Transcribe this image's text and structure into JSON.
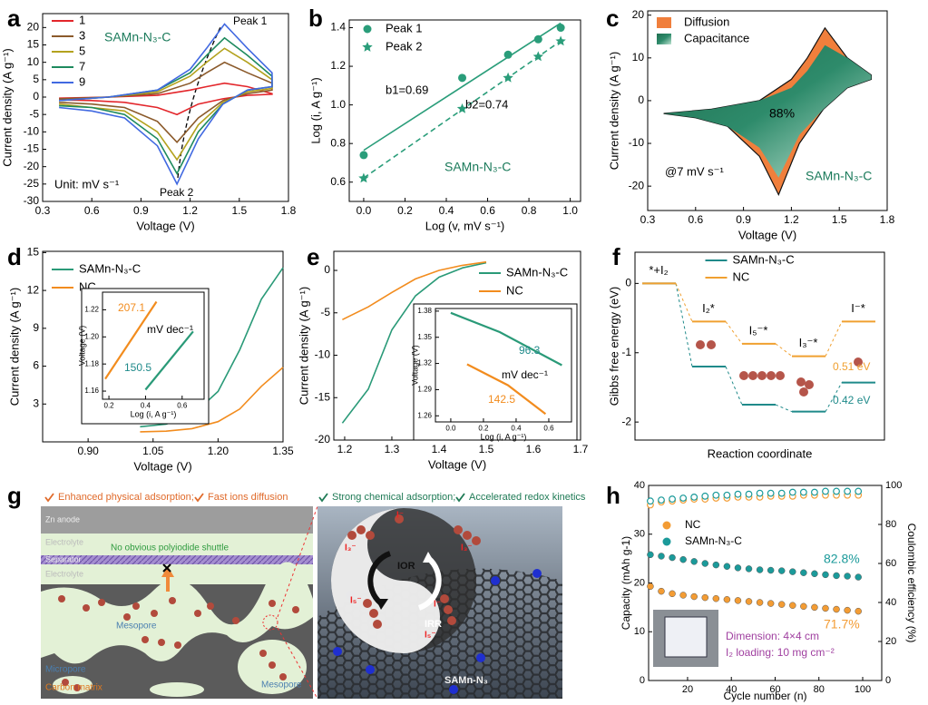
{
  "chart_data": [
    {
      "type": "line",
      "label": "a",
      "xlabel": "Voltage (V)",
      "ylabel": "Current density (A g⁻¹)",
      "xlim": [
        0.3,
        1.8
      ],
      "xticks": [
        0.3,
        0.6,
        0.9,
        1.2,
        1.5,
        1.8
      ],
      "ylim": [
        -30,
        24
      ],
      "yticks": [
        -30,
        -25,
        -20,
        -15,
        -10,
        -5,
        0,
        5,
        10,
        15,
        20
      ],
      "x": [
        0.4,
        0.7,
        1.0,
        1.2,
        1.3,
        1.41,
        1.55,
        1.7,
        1.7,
        1.55,
        1.4,
        1.25,
        1.12,
        1.0,
        0.8,
        0.6,
        0.4
      ],
      "series": [
        {
          "name": "1",
          "color": "#e3262b",
          "values": [
            -0.3,
            0,
            0.5,
            2,
            3,
            4,
            3,
            1,
            0.8,
            0.5,
            -0.5,
            -2,
            -5,
            -3,
            -1.5,
            -1,
            -0.8
          ]
        },
        {
          "name": "3",
          "color": "#8b5a2b",
          "values": [
            -0.5,
            0,
            1,
            4,
            7,
            10,
            7,
            4,
            2,
            1,
            -1,
            -6,
            -13,
            -7,
            -3,
            -2,
            -1.5
          ]
        },
        {
          "name": "5",
          "color": "#b3a21e",
          "values": [
            -1,
            0,
            1.5,
            6,
            10,
            14,
            10,
            5,
            2.5,
            1.5,
            -1.5,
            -8,
            -18,
            -10,
            -4,
            -3,
            -2
          ]
        },
        {
          "name": "7",
          "color": "#1e8a5e",
          "values": [
            -1,
            0,
            2,
            7,
            12,
            17,
            12,
            6,
            3,
            2,
            -2,
            -10,
            -22,
            -12,
            -5,
            -3,
            -2.5
          ]
        },
        {
          "name": "9",
          "color": "#4169e1",
          "values": [
            -1,
            0,
            2,
            8,
            14,
            21,
            14,
            7,
            3,
            2,
            -2,
            -12,
            -25,
            -14,
            -6,
            -4,
            -3
          ]
        }
      ],
      "legend": "upper left",
      "annotations": [
        "SAMn-N₃-C",
        "Unit: mV s⁻¹",
        "Peak 1",
        "Peak 2"
      ]
    },
    {
      "type": "scatter",
      "label": "b",
      "xlabel": "Log (v, mV s⁻¹)",
      "ylabel": "Log (i, A g⁻¹)",
      "xlim": [
        -0.07,
        1.05
      ],
      "xticks": [
        {
          "value": 0,
          "label": "0.0"
        },
        0.2,
        0.4,
        0.6,
        0.8,
        {
          "value": 1,
          "label": "1.0"
        }
      ],
      "ylim": [
        0.5,
        1.44
      ],
      "yticks": [
        0.6,
        0.8,
        {
          "value": 1,
          "label": "1.0"
        },
        1.2,
        1.4
      ],
      "x": [
        0,
        0.477,
        0.699,
        0.845,
        0.954
      ],
      "series": [
        {
          "name": "Peak 1",
          "color": "#2a9d7a",
          "marker": "circle",
          "line_style": "solid",
          "values": [
            0.74,
            1.14,
            1.26,
            1.34,
            1.4
          ]
        },
        {
          "name": "Peak 2",
          "color": "#2a9d7a",
          "marker": "star",
          "line_style": "dashed",
          "values": [
            0.62,
            0.98,
            1.14,
            1.25,
            1.33
          ]
        }
      ],
      "fit_line": true,
      "legend": "upper left",
      "annotations": [
        "b1=0.69",
        "b2=0.74",
        "SAMn-N₃-C"
      ]
    },
    {
      "type": "area",
      "label": "c",
      "xlabel": "Voltage (V)",
      "ylabel": "Current density (A g⁻¹)",
      "xlim": [
        0.3,
        1.8
      ],
      "xticks": [
        0.3,
        0.6,
        0.9,
        1.2,
        1.5,
        1.8
      ],
      "ylim": [
        -25.7,
        21
      ],
      "yticks": [
        -20,
        -10,
        0,
        10,
        20
      ],
      "x": [
        0.4,
        0.7,
        1.0,
        1.2,
        1.3,
        1.41,
        1.55,
        1.7,
        1.7,
        1.55,
        1.4,
        1.25,
        1.12,
        1.0,
        0.8,
        0.6,
        0.4
      ],
      "series": [
        {
          "name": "Diffusion",
          "color": "#f07f3c",
          "values": [
            -3,
            -2,
            0,
            5,
            10,
            17,
            10,
            6,
            5,
            3,
            -2,
            -10,
            -22,
            -13,
            -6,
            -4,
            -3
          ]
        },
        {
          "name": "Capacitance",
          "color": "#2e8b6b",
          "values": [
            -3,
            -2,
            0,
            3,
            7,
            13,
            10,
            6,
            5,
            3,
            -2,
            -8,
            -18,
            -11,
            -6,
            -4,
            -3
          ]
        }
      ],
      "legend": "upper left",
      "annotations": [
        "88%",
        "@7 mV s⁻¹",
        "SAMn-N₃-C"
      ]
    },
    {
      "type": "line",
      "label": "d",
      "xlabel": "Voltage (V)",
      "ylabel": "Current density (A g⁻¹)",
      "xlim": [
        0.795,
        1.35
      ],
      "xticks": [
        {
          "value": 0.9,
          "label": "0.90"
        },
        1.05,
        {
          "value": 1.2,
          "label": "1.20"
        },
        1.35
      ],
      "ylim": [
        0,
        15.1
      ],
      "yticks": [
        3,
        6,
        9,
        12,
        15
      ],
      "x": [
        1.02,
        1.08,
        1.14,
        1.2,
        1.25,
        1.3,
        1.35
      ],
      "series": [
        {
          "name": "SAMn-N₃-C",
          "color": "#2a9a78",
          "values": [
            1.2,
            1.4,
            2.1,
            4.0,
            7.3,
            11.3,
            13.8
          ]
        },
        {
          "name": "NC",
          "color": "#f28c1e",
          "values": [
            0.8,
            0.85,
            1.05,
            1.6,
            2.6,
            4.4,
            5.9
          ]
        }
      ],
      "legend": "upper left",
      "inset": {
        "type": "line",
        "xlabel": "Log (i, A g⁻¹)",
        "ylabel": "Voltage (V)",
        "xlim": [
          0.165,
          0.72
        ],
        "xticks": [
          0.2,
          0.4,
          0.6
        ],
        "ylim": [
          1.154,
          1.233
        ],
        "yticks": [
          1.16,
          1.18,
          {
            "value": 1.2,
            "label": "1.20"
          },
          1.22
        ],
        "series": [
          {
            "color": "#f28c1e",
            "x": [
              0.18,
              0.46
            ],
            "values": [
              1.169,
              1.226
            ]
          },
          {
            "color": "#2a9a78",
            "x": [
              0.4,
              0.66
            ],
            "values": [
              1.161,
              1.204
            ]
          }
        ],
        "annotations": [
          "207.1",
          "150.5",
          "mV dec⁻¹"
        ]
      }
    },
    {
      "type": "line",
      "label": "e",
      "xlabel": "Voltage (V)",
      "ylabel": "Current density (A g⁻¹)",
      "xlim": [
        1.177,
        1.7
      ],
      "xticks": [
        1.2,
        1.3,
        1.4,
        1.5,
        1.6,
        1.7
      ],
      "ylim": [
        -20,
        2.25
      ],
      "yticks": [
        -20,
        -15,
        -10,
        -5,
        0
      ],
      "x": [
        1.195,
        1.25,
        1.3,
        1.35,
        1.4,
        1.45,
        1.5
      ],
      "series": [
        {
          "name": "SAMn-N₃-C",
          "color": "#2a9a78",
          "values": [
            -18,
            -14,
            -7,
            -3,
            -0.8,
            0.3,
            0.9
          ]
        },
        {
          "name": "NC",
          "color": "#f28c1e",
          "values": [
            -5.8,
            -4.3,
            -2.6,
            -1,
            0,
            0.6,
            1
          ]
        }
      ],
      "legend": "upper right",
      "inset": {
        "type": "line",
        "xlabel": "Log (i, A g⁻¹)",
        "ylabel": "Voltage (V)",
        "xlim": [
          -0.094,
          0.739
        ],
        "xticks": [
          {
            "value": 0,
            "label": "0.0"
          },
          0.2,
          0.4,
          0.6
        ],
        "ylim": [
          1.253,
          1.383
        ],
        "yticks": [
          1.26,
          1.29,
          1.32,
          1.35,
          1.38
        ],
        "series": [
          {
            "color": "#2a9a78",
            "x": [
              0,
              0.3,
              0.68
            ],
            "values": [
              1.378,
              1.356,
              1.318
            ]
          },
          {
            "color": "#f28c1e",
            "x": [
              0.1,
              0.35,
              0.58
            ],
            "values": [
              1.319,
              1.295,
              1.262
            ]
          }
        ],
        "annotations": [
          "96.3",
          "142.5",
          "mV dec⁻¹"
        ]
      }
    },
    {
      "type": "step",
      "label": "f",
      "xlabel": "Reaction coordinate",
      "ylabel": "Gibbs free energy (eV)",
      "ylim": [
        -2.26,
        0.45
      ],
      "yticks": [
        -2,
        -1,
        0
      ],
      "categories": [
        "*+I₂",
        "I₂*",
        "I₅⁻*",
        "I₃⁻*",
        "I⁻*"
      ],
      "series": [
        {
          "name": "SAMn-N₃-C",
          "color": "#1f8a8a",
          "values": [
            0,
            -1.2,
            -1.75,
            -1.85,
            -1.43
          ]
        },
        {
          "name": "NC",
          "color": "#f0a030",
          "values": [
            0,
            -0.55,
            -0.87,
            -1.05,
            -0.55
          ]
        }
      ],
      "legend": "upper center",
      "annotations": [
        "0.51 eV",
        "0.42 eV"
      ]
    },
    {
      "type": "scatter",
      "label": "h",
      "xlabel": "Cycle number (n)",
      "ylabel": "Capacity (mAh g-1)",
      "y2label": "Coulombic efficiency (%)",
      "xlim": [
        2.2,
        108.7
      ],
      "xticks": [
        20,
        40,
        60,
        80,
        100
      ],
      "ylim": [
        0,
        40
      ],
      "yticks": [
        0,
        10,
        20,
        30,
        40
      ],
      "y2lim": [
        0,
        100
      ],
      "y2ticks": [
        0,
        20,
        40,
        60,
        80,
        100
      ],
      "x": [
        3,
        8,
        13,
        18,
        23,
        28,
        33,
        38,
        43,
        48,
        53,
        58,
        63,
        68,
        73,
        78,
        83,
        88,
        93,
        98
      ],
      "series": [
        {
          "name": "NC",
          "color": "#f39c34",
          "values": [
            19.3,
            18.3,
            17.8,
            17.5,
            17.2,
            17.0,
            16.8,
            16.6,
            16.4,
            16.2,
            16.0,
            15.8,
            15.6,
            15.4,
            15.2,
            15.0,
            14.8,
            14.6,
            14.4,
            14.2
          ],
          "y2_values": [
            90,
            91.5,
            92,
            92.5,
            93,
            93,
            93.5,
            93.5,
            94,
            94,
            94,
            94.5,
            94.5,
            94.5,
            95,
            95,
            95,
            95,
            95,
            95
          ]
        },
        {
          "name": "SAMn-N₃-C",
          "color": "#1b9a9a",
          "values": [
            25.8,
            25.5,
            25.2,
            24.8,
            24.4,
            24.0,
            23.7,
            23.4,
            23.1,
            22.9,
            22.7,
            22.6,
            22.5,
            22.3,
            22.1,
            21.9,
            21.7,
            21.5,
            21.4,
            21.2
          ],
          "y2_values": [
            92,
            92.5,
            93,
            93.5,
            94,
            94.5,
            95,
            95,
            95.5,
            95.5,
            96,
            96,
            96,
            96.5,
            96.5,
            96.5,
            97,
            97,
            97,
            97
          ]
        }
      ],
      "legend": "upper left",
      "annotations": [
        "82.8%",
        "71.7%",
        "Dimension: 4×4 cm",
        "I₂ loading: 10 mg cm⁻²"
      ]
    }
  ],
  "schematic": {
    "label": "g",
    "left_header": [
      "Enhanced physical adsorption;",
      "Fast ions diffusion"
    ],
    "right_header": [
      "Strong chemical adsorption;",
      "Accelerated redox kinetics"
    ],
    "layers": [
      "Zn anode",
      "Electrolyte",
      "Separator",
      "Electrolyte"
    ],
    "note": "No obvious polyiodide shuttle",
    "regions": [
      "Mesopore",
      "Micropore",
      "Carbon matrix",
      "Mesopore"
    ],
    "cycle": [
      "IOR",
      "IRR"
    ],
    "species": [
      "I⁻",
      "I₃⁻",
      "I₃⁻",
      "I₅⁻",
      "I⁻",
      "I₅⁻"
    ],
    "catalyst": "SAMn-N₃"
  }
}
